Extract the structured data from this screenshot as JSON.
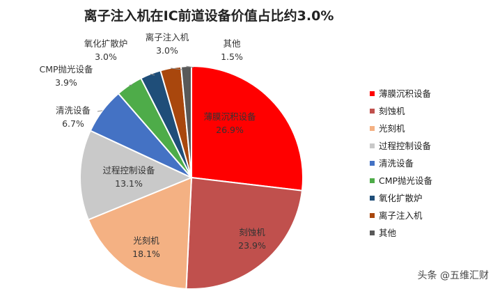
{
  "chart_data": {
    "type": "pie",
    "title": "离子注入机在IC前道设备价值占比约3.0%",
    "slices": [
      {
        "name": "薄膜沉积设备",
        "value": 26.9,
        "label": "26.9%",
        "color": "#ff0000"
      },
      {
        "name": "刻蚀机",
        "value": 23.9,
        "label": "23.9%",
        "color": "#c0504d"
      },
      {
        "name": "光刻机",
        "value": 18.1,
        "label": "18.1%",
        "color": "#f4b183"
      },
      {
        "name": "过程控制设备",
        "value": 13.1,
        "label": "13.1%",
        "color": "#c9c9c9"
      },
      {
        "name": "清洗设备",
        "value": 6.7,
        "label": "6.7%",
        "color": "#4472c4"
      },
      {
        "name": "CMP抛光设备",
        "value": 3.9,
        "label": "3.9%",
        "color": "#4eac49"
      },
      {
        "name": "氧化扩散炉",
        "value": 3.0,
        "label": "3.0%",
        "color": "#1f4e79"
      },
      {
        "name": "离子注入机",
        "value": 3.0,
        "label": "3.0%",
        "color": "#a9470d"
      },
      {
        "name": "其他",
        "value": 1.5,
        "label": "1.5%",
        "color": "#595959"
      }
    ],
    "legend_position": "right"
  },
  "watermark": "头条 @五维汇财"
}
